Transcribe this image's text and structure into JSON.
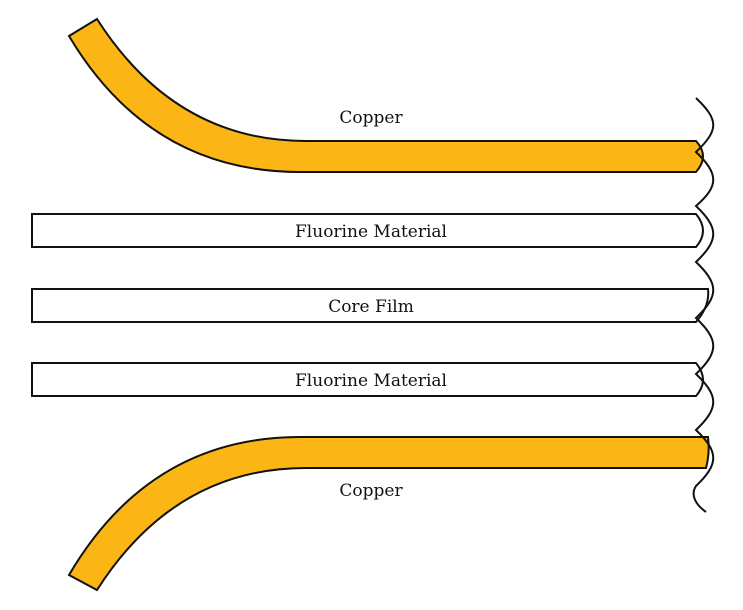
{
  "layers": {
    "copper_top": {
      "label": "Copper"
    },
    "fluorine_top": {
      "label": "Fluorine Material"
    },
    "core_film": {
      "label": "Core Film"
    },
    "fluorine_bottom": {
      "label": "Fluorine Material"
    },
    "copper_bottom": {
      "label": "Copper"
    }
  },
  "colors": {
    "copper_fill": "#FBB515",
    "layer_fill": "#FFFFFF",
    "stroke": "#111111"
  }
}
